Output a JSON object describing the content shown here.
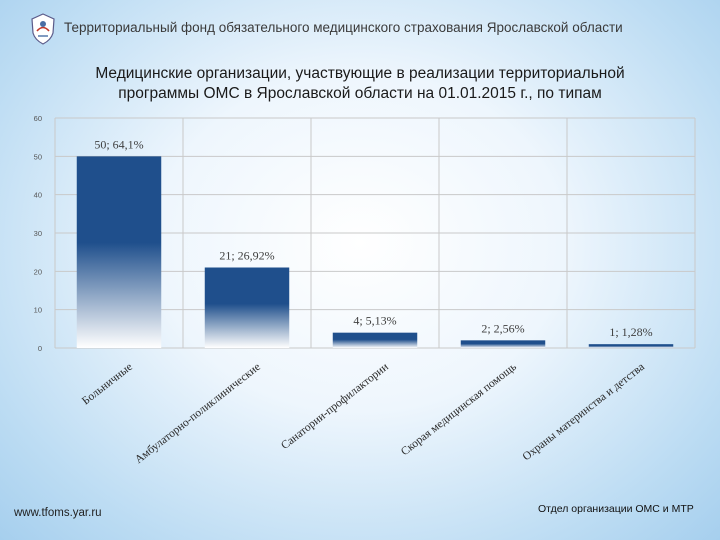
{
  "header": {
    "org_name": "Территориальный фонд обязательного медицинского страхования Ярославской области"
  },
  "title": {
    "line1": "Медицинские организации, участвующие в реализации территориальной",
    "line2": "программы ОМС в Ярославской области  на 01.01.2015 г., по типам"
  },
  "colors": {
    "bar_top": "#1f4f8c",
    "bar_bottom": "#ffffff",
    "grid": "#c9c9c9",
    "label": "#3f3f3f"
  },
  "chart_data": {
    "type": "bar",
    "categories": [
      "Больничные",
      "Амбулаторно-поликлинические",
      "Санатории-профилактории",
      "Скорая медицинская помощь",
      "Охраны материнства и детства"
    ],
    "values": [
      50,
      21,
      4,
      2,
      1
    ],
    "data_labels": [
      "50; 64,1%",
      "21; 26,92%",
      "4; 5,13%",
      "2; 2,56%",
      "1; 1,28%"
    ],
    "y_ticks": [
      "0",
      "10",
      "20",
      "30",
      "40",
      "50",
      "60"
    ],
    "ylim": [
      0,
      60
    ],
    "grid": true,
    "legend": false
  },
  "footer": {
    "left": "www.tfoms.yar.ru",
    "right": "Отдел организации ОМС и МТР"
  }
}
